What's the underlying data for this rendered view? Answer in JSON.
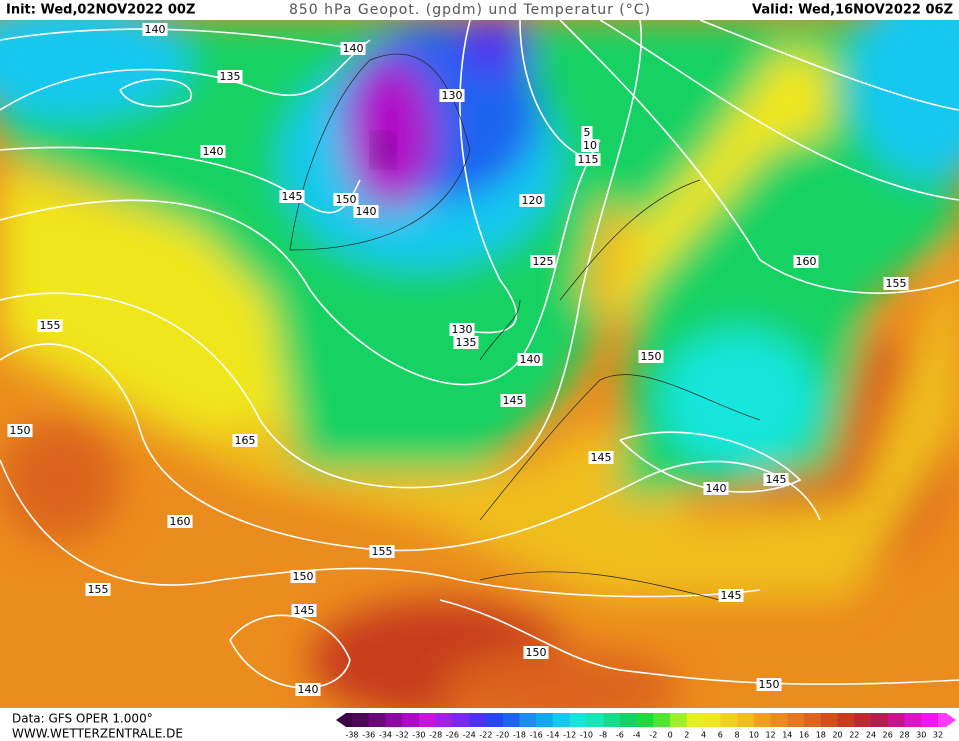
{
  "header": {
    "init": "Init: Wed,02NOV2022 00Z",
    "title": "850 hPa Geopot. (gpdm) und Temperatur (°C)",
    "valid": "Valid: Wed,16NOV2022 06Z"
  },
  "map": {
    "contour_labels": [
      "140",
      "140",
      "135",
      "130",
      "140",
      "145",
      "150",
      "140",
      "120",
      "115",
      "5",
      "10",
      "125",
      "130",
      "135",
      "140",
      "145",
      "150",
      "155",
      "150",
      "165",
      "160",
      "155",
      "150",
      "155",
      "145",
      "140",
      "150",
      "150",
      "145",
      "140",
      "145",
      "145",
      "160",
      "155"
    ]
  },
  "legend": {
    "ticks": [
      -38,
      -36,
      -34,
      -32,
      -30,
      -28,
      -26,
      -24,
      -22,
      -20,
      -18,
      -16,
      -14,
      -12,
      -10,
      -8,
      -6,
      -4,
      -2,
      0,
      2,
      4,
      6,
      8,
      10,
      12,
      14,
      16,
      18,
      20,
      22,
      24,
      26,
      28,
      30,
      32
    ],
    "colors": [
      "#4b0a55",
      "#6a0a7a",
      "#8c0aa0",
      "#b00ac8",
      "#c814dc",
      "#a01ee6",
      "#7828f0",
      "#5032f0",
      "#2846f0",
      "#1e64f0",
      "#1e8cf0",
      "#14aaf0",
      "#14c8f0",
      "#14e6dc",
      "#14e6b4",
      "#14dc8c",
      "#14d264",
      "#1edc3c",
      "#50e632",
      "#a0f028",
      "#e6f01e",
      "#f0e61e",
      "#f0d21e",
      "#f0be1e",
      "#f0a01e",
      "#eb8c1e",
      "#e6781e",
      "#dc641e",
      "#d2501e",
      "#c83c1e",
      "#be2832",
      "#b41e50",
      "#c8148c",
      "#dc14c8",
      "#f014f0"
    ]
  },
  "footer": {
    "data": "Data: GFS OPER 1.000°",
    "site": "WWW.WETTERZENTRALE.DE"
  }
}
